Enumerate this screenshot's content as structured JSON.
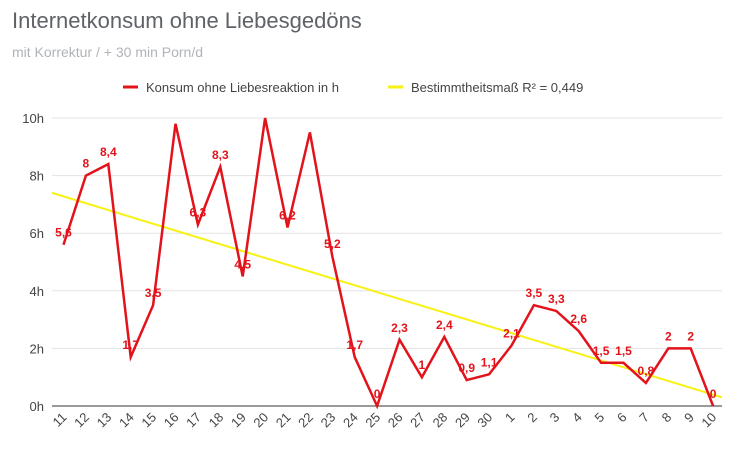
{
  "title": "Internetkonsum ohne Liebesgedöns",
  "subtitle": "mit Korrektur / + 30 min Porn/d",
  "chart_data": {
    "type": "line",
    "title": "Internetkonsum ohne Liebesgedöns",
    "subtitle": "mit Korrektur / + 30 min Porn/d",
    "categories": [
      "11",
      "12",
      "13",
      "14",
      "15",
      "16",
      "17",
      "18",
      "19",
      "20",
      "21",
      "22",
      "23",
      "24",
      "25",
      "26",
      "27",
      "28",
      "29",
      "30",
      "1",
      "2",
      "3",
      "4",
      "5",
      "6",
      "7",
      "8",
      "9",
      "10"
    ],
    "y_ticks": [
      "0h",
      "2h",
      "4h",
      "6h",
      "8h",
      "10h"
    ],
    "ylim": [
      0,
      10
    ],
    "grid": true,
    "legend_position": "top",
    "series": [
      {
        "name": "Konsum ohne Liebesreaktion in h",
        "color": "#e3131b",
        "values": [
          5.6,
          8,
          8.4,
          1.7,
          3.5,
          9.8,
          6.3,
          8.3,
          4.5,
          10,
          6.2,
          9.5,
          5.2,
          1.7,
          0,
          2.3,
          1,
          2.4,
          0.9,
          1.1,
          2.1,
          3.5,
          3.3,
          2.6,
          1.5,
          1.5,
          0.8,
          2,
          2,
          0
        ],
        "labels": [
          "5,6",
          "8",
          "8,4",
          "1,7",
          "3,5",
          "",
          "6,3",
          "8,3",
          "4,5",
          "",
          "6,2",
          "",
          "5,2",
          "1,7",
          "0",
          "2,3",
          "1",
          "2,4",
          "0,9",
          "1,1",
          "2,1",
          "3,5",
          "3,3",
          "2,6",
          "1,5",
          "1,5",
          "0,8",
          "2",
          "2",
          "0"
        ]
      }
    ],
    "trendline": {
      "name": "Bestimmtheitsmaß  R² = 0,449",
      "color": "#f7f215",
      "start": 7.4,
      "end": 0.3
    }
  }
}
